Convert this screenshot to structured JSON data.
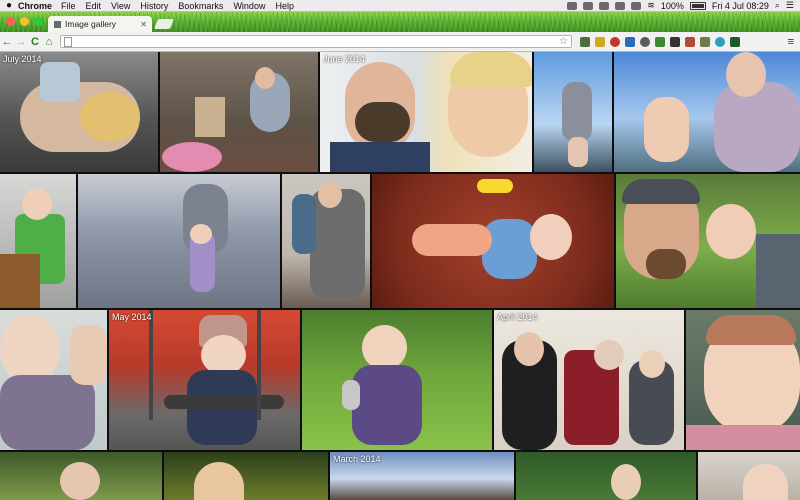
{
  "menubar": {
    "app_name": "Chrome",
    "items": [
      "File",
      "Edit",
      "View",
      "History",
      "Bookmarks",
      "Window",
      "Help"
    ],
    "battery": "100%",
    "datetime": "Fri 4 Jul  08:29"
  },
  "tab": {
    "title": "Image gallery",
    "close": "✕"
  },
  "toolbar": {
    "back": "←",
    "forward": "→",
    "reload": "C",
    "home": "⌂",
    "url": "",
    "star": "☆",
    "menu": "≡"
  },
  "gallery": {
    "labels": {
      "july": "July 2014",
      "june": "June 2014",
      "may": "May 2014",
      "april": "April 2014",
      "march": "March 2014"
    }
  },
  "colors": {
    "theme_green": "#58b22b",
    "toolbar": "#f1f1f1",
    "background": "#0e0e0e"
  },
  "icons": [
    "apple-icon",
    "wifi-icon",
    "battery-icon",
    "search-icon",
    "bullets-icon",
    "back-icon",
    "forward-icon",
    "reload-icon",
    "home-icon",
    "star-icon",
    "chrome-menu-icon"
  ]
}
